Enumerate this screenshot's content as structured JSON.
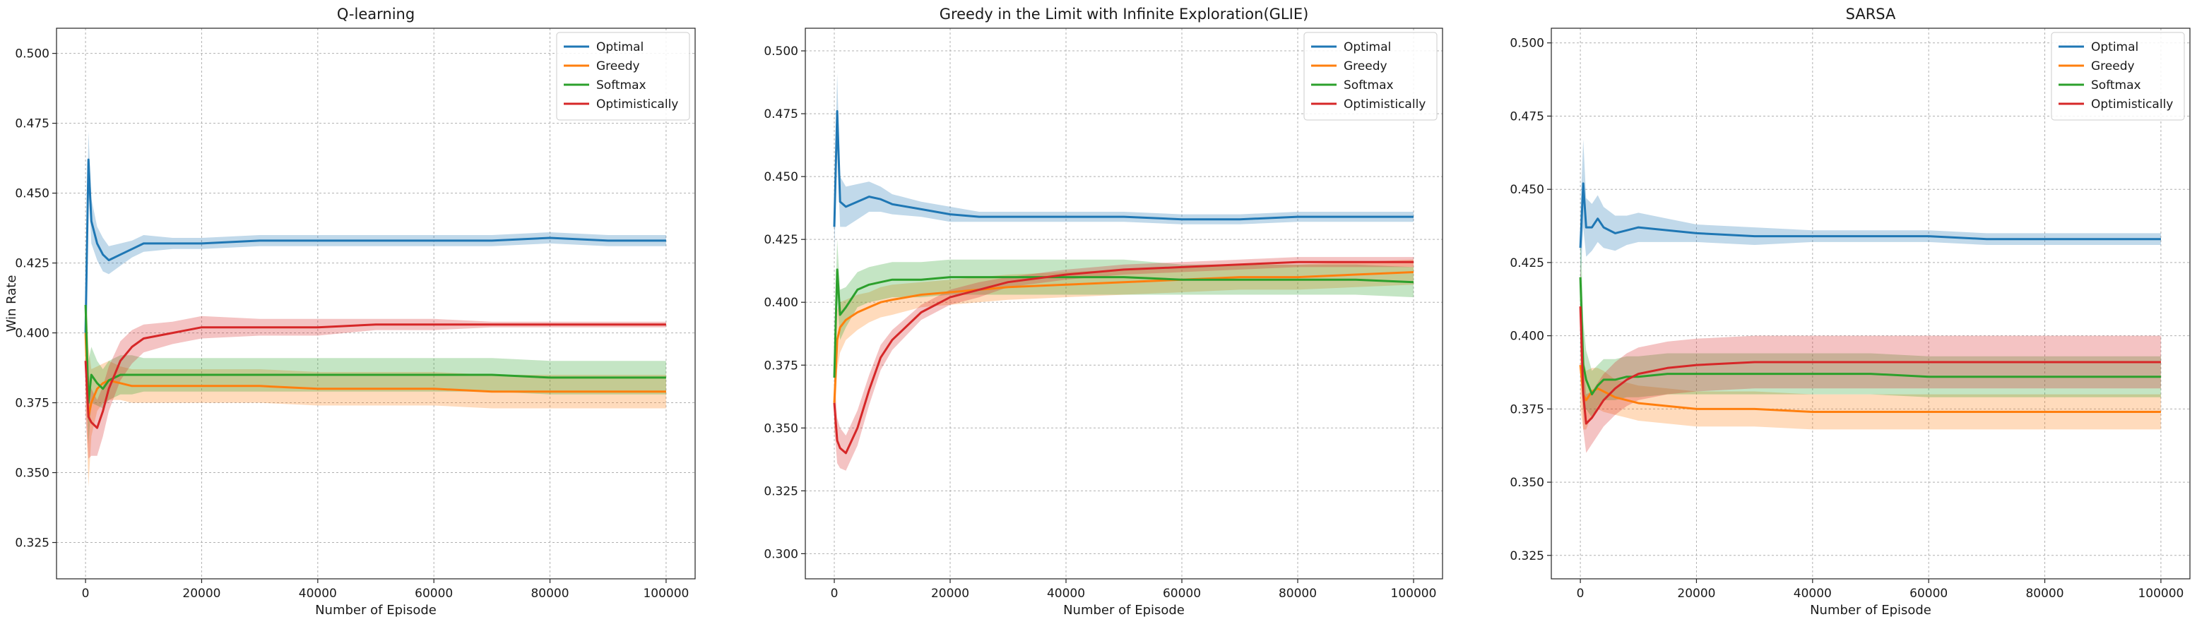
{
  "chart_data": [
    {
      "type": "line",
      "title": "Q-learning",
      "xlabel": "Number of Episode",
      "ylabel": "Win Rate",
      "xlim": [
        -5000,
        105000
      ],
      "ylim": [
        0.312,
        0.509
      ],
      "xticks": [
        0,
        20000,
        40000,
        60000,
        80000,
        100000
      ],
      "yticks": [
        0.325,
        0.35,
        0.375,
        0.4,
        0.425,
        0.45,
        0.475,
        0.5
      ],
      "xtick_labels": [
        "0",
        "20000",
        "40000",
        "60000",
        "80000",
        "100000"
      ],
      "ytick_labels": [
        "0.325",
        "0.350",
        "0.375",
        "0.400",
        "0.425",
        "0.450",
        "0.475",
        "0.500"
      ],
      "grid": true,
      "legend": "top-right",
      "series": [
        {
          "name": "Optimal",
          "color": "#1f77b4",
          "x": [
            0,
            500,
            1000,
            2000,
            3000,
            4000,
            6000,
            8000,
            10000,
            15000,
            20000,
            30000,
            40000,
            50000,
            60000,
            70000,
            80000,
            90000,
            100000
          ],
          "values": [
            0.4,
            0.462,
            0.44,
            0.432,
            0.428,
            0.426,
            0.428,
            0.43,
            0.432,
            0.432,
            0.432,
            0.433,
            0.433,
            0.433,
            0.433,
            0.433,
            0.434,
            0.433,
            0.433
          ],
          "band": [
            0.006,
            0.01,
            0.008,
            0.006,
            0.006,
            0.005,
            0.004,
            0.003,
            0.003,
            0.002,
            0.002,
            0.002,
            0.002,
            0.002,
            0.002,
            0.002,
            0.002,
            0.002,
            0.002
          ]
        },
        {
          "name": "Greedy",
          "color": "#ff7f0e",
          "x": [
            0,
            500,
            1000,
            2000,
            3000,
            4000,
            6000,
            8000,
            10000,
            15000,
            20000,
            30000,
            40000,
            50000,
            60000,
            70000,
            80000,
            90000,
            100000
          ],
          "values": [
            0.4,
            0.37,
            0.375,
            0.38,
            0.382,
            0.383,
            0.382,
            0.381,
            0.381,
            0.381,
            0.381,
            0.381,
            0.38,
            0.38,
            0.38,
            0.379,
            0.379,
            0.379,
            0.379
          ],
          "band": [
            0.02,
            0.025,
            0.012,
            0.008,
            0.007,
            0.007,
            0.006,
            0.006,
            0.006,
            0.006,
            0.006,
            0.006,
            0.006,
            0.006,
            0.006,
            0.006,
            0.006,
            0.006,
            0.006
          ]
        },
        {
          "name": "Softmax",
          "color": "#2ca02c",
          "x": [
            0,
            500,
            1000,
            2000,
            3000,
            4000,
            6000,
            8000,
            10000,
            15000,
            20000,
            30000,
            40000,
            50000,
            60000,
            70000,
            80000,
            90000,
            100000
          ],
          "values": [
            0.41,
            0.375,
            0.385,
            0.382,
            0.38,
            0.383,
            0.385,
            0.385,
            0.385,
            0.385,
            0.385,
            0.385,
            0.385,
            0.385,
            0.385,
            0.385,
            0.384,
            0.384,
            0.384
          ],
          "band": [
            0.02,
            0.015,
            0.01,
            0.008,
            0.007,
            0.007,
            0.007,
            0.007,
            0.006,
            0.006,
            0.006,
            0.006,
            0.006,
            0.006,
            0.006,
            0.006,
            0.006,
            0.006,
            0.006
          ]
        },
        {
          "name": "Optimistically",
          "color": "#d62728",
          "x": [
            0,
            500,
            1000,
            2000,
            3000,
            4000,
            6000,
            8000,
            10000,
            15000,
            20000,
            30000,
            40000,
            50000,
            60000,
            70000,
            80000,
            90000,
            100000
          ],
          "values": [
            0.39,
            0.37,
            0.368,
            0.366,
            0.372,
            0.38,
            0.39,
            0.395,
            0.398,
            0.4,
            0.402,
            0.402,
            0.402,
            0.403,
            0.403,
            0.403,
            0.403,
            0.403,
            0.403
          ],
          "band": [
            0.02,
            0.015,
            0.012,
            0.01,
            0.009,
            0.008,
            0.007,
            0.006,
            0.005,
            0.004,
            0.004,
            0.003,
            0.003,
            0.002,
            0.002,
            0.001,
            0.001,
            0.001,
            0.001
          ]
        }
      ]
    },
    {
      "type": "line",
      "title": "Greedy in the Limit with Infinite Exploration(GLIE)",
      "xlabel": "Number of Episode",
      "ylabel": "",
      "xlim": [
        -5000,
        105000
      ],
      "ylim": [
        0.29,
        0.509
      ],
      "xticks": [
        0,
        20000,
        40000,
        60000,
        80000,
        100000
      ],
      "yticks": [
        0.3,
        0.325,
        0.35,
        0.375,
        0.4,
        0.425,
        0.45,
        0.475,
        0.5
      ],
      "xtick_labels": [
        "0",
        "20000",
        "40000",
        "60000",
        "80000",
        "100000"
      ],
      "ytick_labels": [
        "0.300",
        "0.325",
        "0.350",
        "0.375",
        "0.400",
        "0.425",
        "0.450",
        "0.475",
        "0.500"
      ],
      "grid": true,
      "legend": "top-right",
      "series": [
        {
          "name": "Optimal",
          "color": "#1f77b4",
          "x": [
            0,
            500,
            1000,
            2000,
            4000,
            6000,
            8000,
            10000,
            15000,
            20000,
            25000,
            30000,
            40000,
            50000,
            60000,
            70000,
            80000,
            90000,
            100000
          ],
          "values": [
            0.43,
            0.476,
            0.44,
            0.438,
            0.44,
            0.442,
            0.441,
            0.439,
            0.437,
            0.435,
            0.434,
            0.434,
            0.434,
            0.434,
            0.433,
            0.433,
            0.434,
            0.434,
            0.434
          ],
          "band": [
            0.012,
            0.015,
            0.01,
            0.008,
            0.007,
            0.006,
            0.005,
            0.004,
            0.003,
            0.003,
            0.002,
            0.002,
            0.002,
            0.002,
            0.002,
            0.002,
            0.002,
            0.002,
            0.002
          ]
        },
        {
          "name": "Greedy",
          "color": "#ff7f0e",
          "x": [
            0,
            500,
            1000,
            2000,
            4000,
            6000,
            8000,
            10000,
            15000,
            20000,
            25000,
            30000,
            40000,
            50000,
            60000,
            70000,
            80000,
            90000,
            100000
          ],
          "values": [
            0.36,
            0.385,
            0.39,
            0.393,
            0.396,
            0.398,
            0.4,
            0.401,
            0.403,
            0.404,
            0.405,
            0.406,
            0.407,
            0.408,
            0.409,
            0.41,
            0.41,
            0.411,
            0.412
          ],
          "band": [
            0.015,
            0.012,
            0.01,
            0.008,
            0.007,
            0.006,
            0.006,
            0.006,
            0.005,
            0.005,
            0.005,
            0.005,
            0.005,
            0.005,
            0.005,
            0.005,
            0.005,
            0.005,
            0.005
          ]
        },
        {
          "name": "Softmax",
          "color": "#2ca02c",
          "x": [
            0,
            500,
            1000,
            2000,
            4000,
            6000,
            8000,
            10000,
            15000,
            20000,
            25000,
            30000,
            40000,
            50000,
            60000,
            70000,
            80000,
            90000,
            100000
          ],
          "values": [
            0.37,
            0.413,
            0.395,
            0.398,
            0.405,
            0.407,
            0.408,
            0.409,
            0.409,
            0.41,
            0.41,
            0.41,
            0.41,
            0.41,
            0.409,
            0.409,
            0.409,
            0.409,
            0.408
          ],
          "band": [
            0.015,
            0.012,
            0.01,
            0.008,
            0.007,
            0.007,
            0.007,
            0.007,
            0.007,
            0.007,
            0.007,
            0.007,
            0.007,
            0.007,
            0.006,
            0.006,
            0.006,
            0.006,
            0.006
          ]
        },
        {
          "name": "Optimistically",
          "color": "#d62728",
          "x": [
            0,
            500,
            1000,
            2000,
            4000,
            6000,
            8000,
            10000,
            15000,
            20000,
            25000,
            30000,
            40000,
            50000,
            60000,
            70000,
            80000,
            90000,
            100000
          ],
          "values": [
            0.36,
            0.345,
            0.342,
            0.34,
            0.35,
            0.365,
            0.378,
            0.385,
            0.396,
            0.402,
            0.405,
            0.408,
            0.411,
            0.413,
            0.414,
            0.415,
            0.416,
            0.416,
            0.416
          ],
          "band": [
            0.01,
            0.009,
            0.008,
            0.007,
            0.007,
            0.006,
            0.005,
            0.004,
            0.003,
            0.003,
            0.003,
            0.002,
            0.002,
            0.002,
            0.002,
            0.002,
            0.002,
            0.002,
            0.002
          ]
        }
      ]
    },
    {
      "type": "line",
      "title": "SARSA",
      "xlabel": "Number of Episode",
      "ylabel": "",
      "xlim": [
        -5000,
        105000
      ],
      "ylim": [
        0.317,
        0.505
      ],
      "xticks": [
        0,
        20000,
        40000,
        60000,
        80000,
        100000
      ],
      "yticks": [
        0.325,
        0.35,
        0.375,
        0.4,
        0.425,
        0.45,
        0.475,
        0.5
      ],
      "xtick_labels": [
        "0",
        "20000",
        "40000",
        "60000",
        "80000",
        "100000"
      ],
      "ytick_labels": [
        "0.325",
        "0.350",
        "0.375",
        "0.400",
        "0.425",
        "0.450",
        "0.475",
        "0.500"
      ],
      "grid": true,
      "legend": "top-right",
      "series": [
        {
          "name": "Optimal",
          "color": "#1f77b4",
          "x": [
            0,
            500,
            1000,
            2000,
            3000,
            4000,
            6000,
            8000,
            10000,
            15000,
            20000,
            30000,
            40000,
            50000,
            60000,
            70000,
            80000,
            90000,
            100000
          ],
          "values": [
            0.43,
            0.452,
            0.437,
            0.437,
            0.44,
            0.437,
            0.435,
            0.436,
            0.437,
            0.436,
            0.435,
            0.434,
            0.434,
            0.434,
            0.434,
            0.433,
            0.433,
            0.433,
            0.433
          ],
          "band": [
            0.012,
            0.015,
            0.01,
            0.008,
            0.008,
            0.007,
            0.006,
            0.005,
            0.005,
            0.004,
            0.003,
            0.003,
            0.002,
            0.002,
            0.002,
            0.002,
            0.002,
            0.002,
            0.002
          ]
        },
        {
          "name": "Greedy",
          "color": "#ff7f0e",
          "x": [
            0,
            500,
            1000,
            2000,
            3000,
            4000,
            6000,
            8000,
            10000,
            15000,
            20000,
            30000,
            40000,
            50000,
            60000,
            70000,
            80000,
            90000,
            100000
          ],
          "values": [
            0.39,
            0.38,
            0.378,
            0.381,
            0.382,
            0.381,
            0.379,
            0.378,
            0.377,
            0.376,
            0.375,
            0.375,
            0.374,
            0.374,
            0.374,
            0.374,
            0.374,
            0.374,
            0.374
          ],
          "band": [
            0.015,
            0.012,
            0.01,
            0.008,
            0.007,
            0.007,
            0.006,
            0.006,
            0.006,
            0.006,
            0.006,
            0.006,
            0.006,
            0.006,
            0.006,
            0.006,
            0.006,
            0.006,
            0.006
          ]
        },
        {
          "name": "Softmax",
          "color": "#2ca02c",
          "x": [
            0,
            500,
            1000,
            2000,
            3000,
            4000,
            6000,
            8000,
            10000,
            15000,
            20000,
            30000,
            40000,
            50000,
            60000,
            70000,
            80000,
            90000,
            100000
          ],
          "values": [
            0.42,
            0.39,
            0.385,
            0.38,
            0.383,
            0.385,
            0.385,
            0.386,
            0.386,
            0.387,
            0.387,
            0.387,
            0.387,
            0.387,
            0.386,
            0.386,
            0.386,
            0.386,
            0.386
          ],
          "band": [
            0.02,
            0.015,
            0.01,
            0.008,
            0.007,
            0.007,
            0.007,
            0.007,
            0.007,
            0.007,
            0.007,
            0.007,
            0.007,
            0.007,
            0.007,
            0.007,
            0.007,
            0.007,
            0.007
          ]
        },
        {
          "name": "Optimistically",
          "color": "#d62728",
          "x": [
            0,
            500,
            1000,
            2000,
            3000,
            4000,
            6000,
            8000,
            10000,
            15000,
            20000,
            30000,
            40000,
            50000,
            60000,
            70000,
            80000,
            90000,
            100000
          ],
          "values": [
            0.41,
            0.38,
            0.37,
            0.372,
            0.375,
            0.378,
            0.382,
            0.385,
            0.387,
            0.389,
            0.39,
            0.391,
            0.391,
            0.391,
            0.391,
            0.391,
            0.391,
            0.391,
            0.391
          ],
          "band": [
            0.015,
            0.012,
            0.01,
            0.009,
            0.009,
            0.009,
            0.009,
            0.009,
            0.009,
            0.009,
            0.009,
            0.009,
            0.009,
            0.009,
            0.009,
            0.009,
            0.009,
            0.009,
            0.009
          ]
        }
      ]
    }
  ]
}
